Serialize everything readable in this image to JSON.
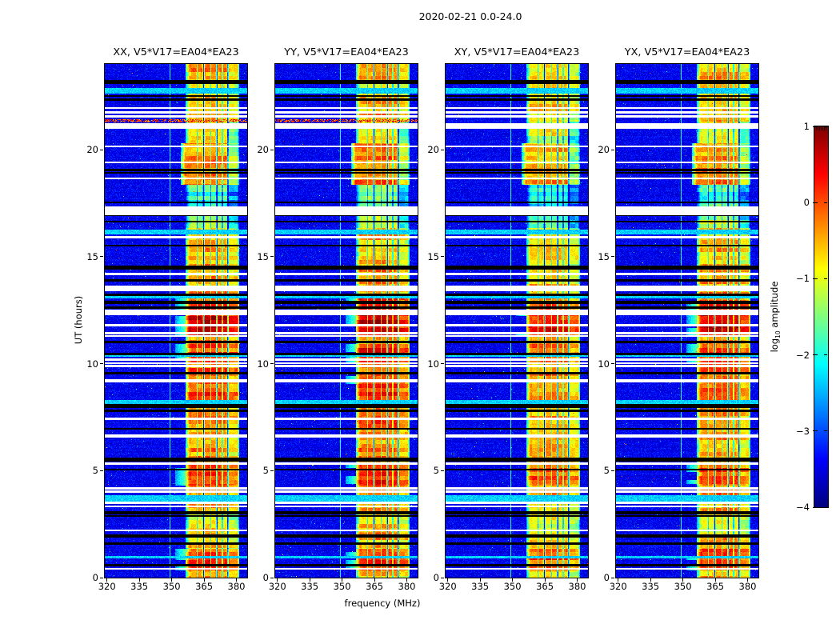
{
  "figure": {
    "title": "2020-02-21 0.0-24.0",
    "background": "#ffffff"
  },
  "axes": {
    "xlabel": "frequency (MHz)",
    "ylabel": "UT (hours)",
    "x_ticks": [
      320,
      335,
      350,
      365,
      380
    ],
    "y_ticks": [
      0,
      5,
      10,
      15,
      20
    ],
    "xlim": [
      319,
      385
    ],
    "ylim": [
      0,
      24
    ]
  },
  "panels": [
    {
      "pol": "XX",
      "title": "XX, V5*V17=EA04*EA23"
    },
    {
      "pol": "YY",
      "title": "YY, V5*V17=EA04*EA23"
    },
    {
      "pol": "XY",
      "title": "XY, V5*V17=EA04*EA23"
    },
    {
      "pol": "YX",
      "title": "YX, V5*V17=EA04*EA23"
    }
  ],
  "colorbar": {
    "label_pre": "log",
    "label_sub": "10",
    "label_post": " amplitude",
    "ticks": [
      1,
      0,
      -1,
      -2,
      -3,
      -4
    ],
    "vmin": -4,
    "vmax": 1,
    "colormap": "jet"
  },
  "chart_data": {
    "type": "heatmap",
    "title": "2020-02-21 0.0-24.0",
    "xlabel": "frequency (MHz)",
    "ylabel": "UT (hours)",
    "x_range_mhz": [
      319,
      385
    ],
    "y_range_hours": [
      0,
      24
    ],
    "color_scale": {
      "vmin": -4,
      "vmax": 1,
      "colormap": "jet",
      "label": "log10 amplitude"
    },
    "panels": [
      "XX, V5*V17=EA04*EA23",
      "YY, V5*V17=EA04*EA23",
      "XY, V5*V17=EA04*EA23",
      "YX, V5*V17=EA04*EA23"
    ],
    "background_level_log10": -3.6,
    "narrow_line_mhz": 349.3,
    "rfi_band": {
      "f_lo": 357.5,
      "f_hi": 381.3,
      "wide_hours": [
        18.35,
        20.3
      ],
      "wide_f_lo": 355.5,
      "gap_channels_mhz": [
        364.8,
        371.0,
        376.0
      ],
      "minor_gap_channels_mhz": [
        361.8,
        368.2,
        373.5
      ],
      "column_levels": [
        0.18,
        0.28,
        0.22,
        -0.15
      ],
      "right_column_dim_hours": [
        16.3,
        21.3
      ]
    },
    "band_intensity_segments": [
      [
        0.0,
        0.35,
        -0.75
      ],
      [
        0.35,
        1.35,
        -0.1
      ],
      [
        1.35,
        2.1,
        -0.8
      ],
      [
        2.1,
        3.1,
        -1.0
      ],
      [
        3.1,
        4.3,
        -0.6
      ],
      [
        4.3,
        5.3,
        -0.15
      ],
      [
        5.3,
        6.6,
        -0.6
      ],
      [
        6.6,
        8.25,
        -0.45
      ],
      [
        8.25,
        9.1,
        -0.2
      ],
      [
        9.1,
        10.0,
        -0.3
      ],
      [
        10.0,
        10.9,
        -0.1
      ],
      [
        10.9,
        11.25,
        -0.5
      ],
      [
        11.25,
        12.35,
        0.3
      ],
      [
        12.35,
        13.05,
        -0.15
      ],
      [
        13.05,
        14.55,
        -0.6
      ],
      [
        14.55,
        16.35,
        -0.8
      ],
      [
        16.35,
        17.3,
        -1.5
      ],
      [
        17.3,
        18.35,
        -2.0
      ],
      [
        18.35,
        20.3,
        -0.55
      ],
      [
        20.3,
        21.3,
        -1.05
      ],
      [
        21.3,
        22.5,
        -0.7
      ],
      [
        22.5,
        23.3,
        -0.9
      ],
      [
        23.3,
        24.01,
        -0.65
      ]
    ],
    "panel_amp_offsets": [
      0,
      0.1,
      -0.15,
      0
    ],
    "time_stripes": [
      {
        "h": 23.15,
        "t": "black",
        "w": 0.2
      },
      {
        "h": 22.75,
        "t": "cyan",
        "w": 0.28
      },
      {
        "h": 22.5,
        "t": "black",
        "w": 0.1
      },
      {
        "h": 22.33,
        "t": "black",
        "w": 0.1
      },
      {
        "h": 21.95,
        "t": "white",
        "w": 0.1
      },
      {
        "h": 21.75,
        "t": "white",
        "w": 0.1
      },
      {
        "h": 21.55,
        "t": "white",
        "w": 0.1
      },
      {
        "h": 21.35,
        "t": "speckle",
        "w": 0.14,
        "panels": [
          0,
          1
        ]
      },
      {
        "h": 21.1,
        "t": "white",
        "w": 0.24
      },
      {
        "h": 20.15,
        "t": "white",
        "w": 0.1
      },
      {
        "h": 19.4,
        "t": "white",
        "w": 0.1
      },
      {
        "h": 19.05,
        "t": "black",
        "w": 0.1
      },
      {
        "h": 18.92,
        "t": "black",
        "w": 0.1
      },
      {
        "h": 18.65,
        "t": "white",
        "w": 0.1
      },
      {
        "h": 17.52,
        "t": "black",
        "w": 0.08
      },
      {
        "h": 17.15,
        "t": "white",
        "w": 0.4
      },
      {
        "h": 16.95,
        "t": "black",
        "w": 0.14
      },
      {
        "h": 16.62,
        "t": "black",
        "w": 0.08
      },
      {
        "h": 16.15,
        "t": "cyan",
        "w": 0.2
      },
      {
        "h": 15.9,
        "t": "white",
        "w": 0.12
      },
      {
        "h": 15.52,
        "t": "black",
        "w": 0.1
      },
      {
        "h": 14.5,
        "t": "black",
        "w": 0.18
      },
      {
        "h": 14.2,
        "t": "white",
        "w": 0.12
      },
      {
        "h": 13.9,
        "t": "black",
        "w": 0.12
      },
      {
        "h": 13.5,
        "t": "white",
        "w": 0.26
      },
      {
        "h": 13.22,
        "t": "black",
        "w": 0.1
      },
      {
        "h": 13.1,
        "t": "cyan",
        "w": 0.1
      },
      {
        "h": 12.85,
        "t": "black",
        "w": 0.14
      },
      {
        "h": 12.62,
        "t": "black",
        "w": 0.1
      },
      {
        "h": 12.4,
        "t": "white",
        "w": 0.24
      },
      {
        "h": 11.8,
        "t": "white",
        "w": 0.12
      },
      {
        "h": 11.42,
        "t": "white",
        "w": 0.1
      },
      {
        "h": 11.28,
        "t": "white",
        "w": 0.08
      },
      {
        "h": 11.0,
        "t": "black",
        "w": 0.12
      },
      {
        "h": 10.45,
        "t": "black",
        "w": 0.1
      },
      {
        "h": 10.38,
        "t": "cyan",
        "w": 0.12
      },
      {
        "h": 10.18,
        "t": "white",
        "w": 0.1
      },
      {
        "h": 10.02,
        "t": "white",
        "w": 0.1
      },
      {
        "h": 9.88,
        "t": "white",
        "w": 0.1
      },
      {
        "h": 9.55,
        "t": "black",
        "w": 0.1
      },
      {
        "h": 9.2,
        "t": "white",
        "w": 0.12
      },
      {
        "h": 8.22,
        "t": "cyan",
        "w": 0.18
      },
      {
        "h": 8.05,
        "t": "black",
        "w": 0.24
      },
      {
        "h": 7.8,
        "t": "black",
        "w": 0.1
      },
      {
        "h": 7.42,
        "t": "white",
        "w": 0.1
      },
      {
        "h": 6.95,
        "t": "black",
        "w": 0.1
      },
      {
        "h": 6.62,
        "t": "white",
        "w": 0.12
      },
      {
        "h": 5.52,
        "t": "black",
        "w": 0.18
      },
      {
        "h": 5.33,
        "t": "white",
        "w": 0.1
      },
      {
        "h": 5.05,
        "t": "black",
        "w": 0.1
      },
      {
        "h": 4.18,
        "t": "white",
        "w": 0.1
      },
      {
        "h": 4.02,
        "t": "white",
        "w": 0.1
      },
      {
        "h": 3.7,
        "t": "cyan",
        "w": 0.28
      },
      {
        "h": 3.5,
        "t": "white",
        "w": 0.1
      },
      {
        "h": 3.33,
        "t": "white",
        "w": 0.1
      },
      {
        "h": 3.02,
        "t": "black",
        "w": 0.14
      },
      {
        "h": 2.88,
        "t": "black",
        "w": 0.08
      },
      {
        "h": 2.2,
        "t": "white",
        "w": 0.1
      },
      {
        "h": 1.95,
        "t": "black",
        "w": 0.14
      },
      {
        "h": 1.6,
        "t": "black",
        "w": 0.1
      },
      {
        "h": 0.95,
        "t": "cyan",
        "w": 0.12
      },
      {
        "h": 0.58,
        "t": "black",
        "w": 0.1
      },
      {
        "h": 0.42,
        "t": "white",
        "w": 0.08
      }
    ]
  }
}
